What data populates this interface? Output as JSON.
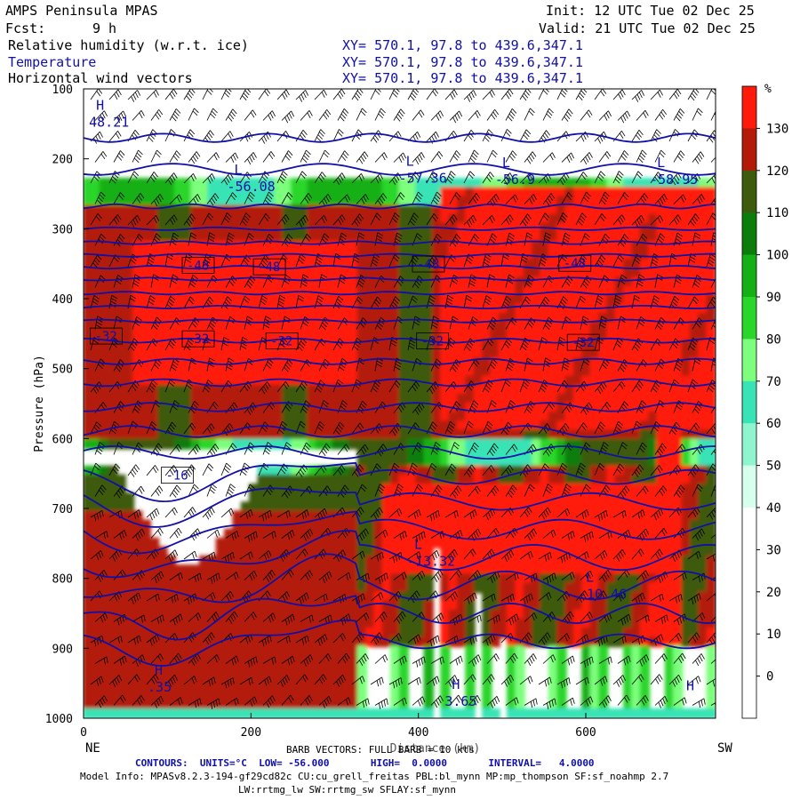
{
  "header": {
    "app_title": "AMPS Peninsula MPAS",
    "init_label": "Init: 12 UTC Tue 02 Dec 25",
    "fcst_label": "Fcst:",
    "fcst_value": "9 h",
    "valid_label": "Valid: 21 UTC Tue 02 Dec 25",
    "field1": "Relative humidity (w.r.t. ice)",
    "field2": "Temperature",
    "field3": "Horizontal wind vectors",
    "xy_text": "XY= 570.1, 97.8 to 439.6,347.1"
  },
  "colors": {
    "temp_contour": "#1010a8",
    "rh_scale": [
      "#ffffff",
      "#ffffff",
      "#ffffff",
      "#d6ffee",
      "#8ff5cf",
      "#38e3b5",
      "#7dff7d",
      "#2ad62a",
      "#15b015",
      "#0b7d0b",
      "#3d5a0d",
      "#b31a0a",
      "#ff1a0a"
    ]
  },
  "footer": {
    "barb_text": "BARB VECTORS: FULL BARB = 10 kts",
    "contours_text": "CONTOURS:  UNITS=°C  LOW= -56.000       HIGH=  0.0000       INTERVAL=   4.0000",
    "model_info1": "Model Info: MPASv8.2.3-194-gf29cd82c CU:cu_grell_freitas PBL:bl_mynn MP:mp_thompson SF:sf_noahmp 2.7",
    "model_info2": "LW:rrtmg_lw SW:rrtmg_sw SFLAY:sf_mynn"
  },
  "chart_data": {
    "type": "heatmap",
    "ylabel": "Pressure (hPa)",
    "xlabel": "Distance (km)",
    "x_ticks": [
      0,
      200,
      400,
      600
    ],
    "y_ticks": [
      100,
      200,
      300,
      400,
      500,
      600,
      700,
      800,
      900,
      1000
    ],
    "xlim": [
      0,
      755
    ],
    "ylim": [
      1000,
      100
    ],
    "x_end_labels": {
      "left": "NE",
      "right": "SW"
    },
    "colorbar": {
      "unit": "%",
      "ticks": [
        130,
        120,
        110,
        100,
        90,
        80,
        70,
        60,
        50,
        40,
        30,
        20,
        10,
        0
      ]
    },
    "temperature_contours_c": [
      -16,
      -32,
      -48,
      -56.08,
      -57.36,
      -56.9,
      -58.95
    ],
    "contour_labels": [
      {
        "text": "-48",
        "x": 120,
        "p": 355
      },
      {
        "text": "-48",
        "x": 205,
        "p": 357
      },
      {
        "text": "-48",
        "x": 395,
        "p": 353
      },
      {
        "text": "-48",
        "x": 570,
        "p": 352
      },
      {
        "text": "-32",
        "x": 10,
        "p": 456
      },
      {
        "text": "-32",
        "x": 120,
        "p": 460
      },
      {
        "text": "-32",
        "x": 220,
        "p": 463
      },
      {
        "text": "-32",
        "x": 400,
        "p": 463
      },
      {
        "text": "-32",
        "x": 580,
        "p": 465
      },
      {
        "text": "-16",
        "x": 95,
        "p": 655
      }
    ],
    "extrema": [
      {
        "type": "H",
        "value": "48.21",
        "x": 15,
        "p": 130
      },
      {
        "type": "L",
        "value": "-56.08",
        "x": 180,
        "p": 222
      },
      {
        "type": "L",
        "value": "-57.36",
        "x": 385,
        "p": 210
      },
      {
        "type": "L",
        "value": "-56.9",
        "x": 500,
        "p": 212
      },
      {
        "type": "L",
        "value": "-58.95",
        "x": 685,
        "p": 212
      },
      {
        "type": "L",
        "value": "-13.32",
        "x": 395,
        "p": 758
      },
      {
        "type": "L",
        "value": "-10.46",
        "x": 600,
        "p": 805
      },
      {
        "type": "H",
        "value": ".35",
        "x": 85,
        "p": 938
      },
      {
        "type": "H",
        "value": "3.65",
        "x": 440,
        "p": 958
      },
      {
        "type": "H",
        "value": "",
        "x": 720,
        "p": 960
      }
    ],
    "rh_bands": [
      {
        "name": "white_upper",
        "p_top": 100,
        "p_bot": 258,
        "rh": 15
      },
      {
        "name": "green_rim",
        "p_top": 228,
        "p_bot": 258,
        "rh": 75
      },
      {
        "name": "olive_upper",
        "p_top": 258,
        "p_bot": 610,
        "rh": 105
      },
      {
        "name": "red_core_left",
        "x0": 60,
        "x1": 330,
        "p_top": 320,
        "p_bot": 520,
        "rh": 125
      },
      {
        "name": "red_core_right",
        "x0": 420,
        "x1": 755,
        "p_top": 240,
        "p_bot": 590,
        "rh": 125
      },
      {
        "name": "white_dry_left",
        "x0": 0,
        "x1": 320,
        "p_top": 610,
        "p_bot": 820,
        "rh": 15
      },
      {
        "name": "olive_lower",
        "x0": 0,
        "x1": 755,
        "p_top": 640,
        "p_bot": 990,
        "rh": 105
      },
      {
        "name": "red_lower",
        "x0": 360,
        "x1": 680,
        "p_top": 660,
        "p_bot": 800,
        "rh": 125
      }
    ]
  }
}
